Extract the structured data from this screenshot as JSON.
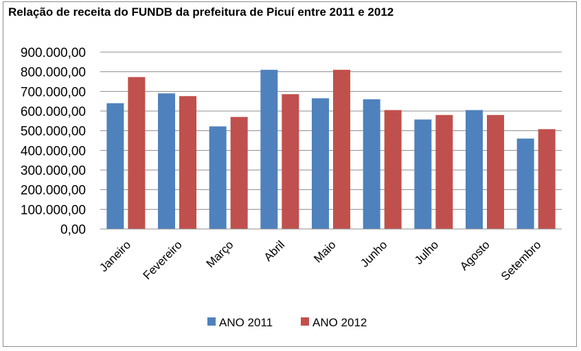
{
  "chart_data": {
    "type": "bar",
    "title": "Relação de receita do FUNDB da prefeitura de Picuí entre 2011 e 2012",
    "xlabel": "",
    "ylabel": "",
    "categories": [
      "Janeiro",
      "Fevereiro",
      "Março",
      "Abril",
      "Maio",
      "Junho",
      "Julho",
      "Agosto",
      "Setembro"
    ],
    "series": [
      {
        "name": "ANO 2011",
        "color": "#4f81bd",
        "values": [
          640000,
          690000,
          522000,
          810000,
          665000,
          660000,
          557000,
          605000,
          460000
        ]
      },
      {
        "name": "ANO 2012",
        "color": "#c0504d",
        "values": [
          773000,
          676000,
          570000,
          686000,
          810000,
          605000,
          580000,
          580000,
          508000
        ]
      }
    ],
    "ylim": [
      0,
      900000
    ],
    "y_ticks": [
      "0,00",
      "100.000,00",
      "200.000,00",
      "300.000,00",
      "400.000,00",
      "500.000,00",
      "600.000,00",
      "700.000,00",
      "800.000,00",
      "900.000,00"
    ],
    "grid": true,
    "legend_position": "bottom"
  }
}
